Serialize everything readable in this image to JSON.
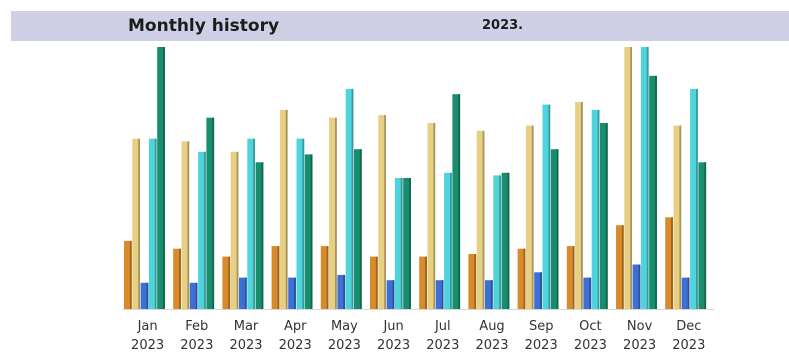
{
  "header": {
    "title": "Monthly history",
    "year": "2023."
  },
  "chart_data": {
    "type": "bar",
    "categories": [
      "Jan",
      "Feb",
      "Mar",
      "Apr",
      "May",
      "Jun",
      "Jul",
      "Aug",
      "Sep",
      "Oct",
      "Nov",
      "Dec"
    ],
    "category_sublabel": "2023",
    "ylim": [
      0,
      100
    ],
    "grid": false,
    "series": [
      {
        "color": "#d98a2b",
        "values": [
          26,
          23,
          20,
          24,
          24,
          20,
          20,
          21,
          23,
          24,
          32,
          35
        ]
      },
      {
        "color": "#e7cf83",
        "values": [
          65,
          64,
          60,
          76,
          73,
          74,
          71,
          68,
          70,
          79,
          100,
          70
        ]
      },
      {
        "color": "#3d6fd4",
        "values": [
          10,
          10,
          12,
          12,
          13,
          11,
          11,
          11,
          14,
          12,
          17,
          12
        ]
      },
      {
        "color": "#4fd4dc",
        "values": [
          65,
          60,
          65,
          65,
          84,
          50,
          52,
          51,
          78,
          76,
          100,
          84
        ]
      },
      {
        "color": "#198d6e",
        "values": [
          100,
          73,
          56,
          59,
          61,
          50,
          82,
          52,
          61,
          71,
          89,
          56
        ]
      }
    ]
  }
}
